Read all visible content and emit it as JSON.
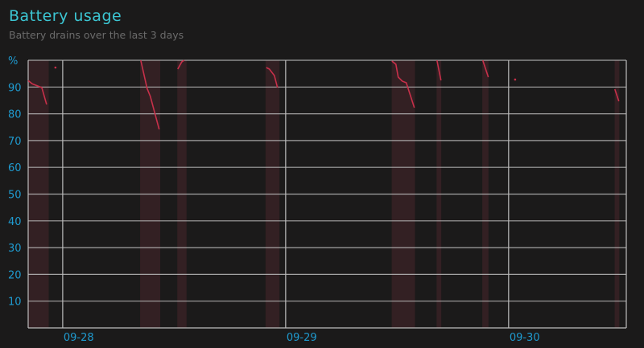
{
  "header": {
    "title": "Battery usage",
    "subtitle": "Battery drains over the last 3 days"
  },
  "chart_data": {
    "type": "line",
    "title": "Battery usage",
    "subtitle": "Battery drains over the last 3 days",
    "ylabel": "%",
    "ylim": [
      0,
      100
    ],
    "yticks": [
      "90",
      "80",
      "70",
      "60",
      "50",
      "40",
      "30",
      "20",
      "10"
    ],
    "xlim": [
      "09-27 20:17",
      "09-30 12:40"
    ],
    "xticks": [
      "09-28",
      "09-29",
      "09-30"
    ],
    "grid": true,
    "colors": {
      "line": "#c8304a",
      "shade": "#3a2226",
      "grid": "#bdbdbd",
      "axis_text": "#1f9bd0",
      "title": "#3cc6d3"
    },
    "drain_periods": [
      [
        "09-27 20:17",
        "09-27 22:30"
      ],
      [
        "09-28 08:20",
        "09-28 10:30"
      ],
      [
        "09-28 12:20",
        "09-28 13:20"
      ],
      [
        "09-28 21:50",
        "09-28 23:20"
      ],
      [
        "09-29 11:25",
        "09-29 13:55"
      ],
      [
        "09-29 16:15",
        "09-29 16:45"
      ],
      [
        "09-29 21:10",
        "09-29 21:50"
      ],
      [
        "09-30 11:25",
        "09-30 11:55"
      ]
    ],
    "series": [
      {
        "points": [
          [
            "09-27 20:17",
            92.4
          ],
          [
            "09-27 20:43",
            91.2
          ],
          [
            "09-27 21:45",
            89.8
          ],
          [
            "09-27 22:16",
            83.5
          ]
        ]
      },
      {
        "points": [
          [
            "09-27 23:13",
            97.3
          ]
        ]
      },
      {
        "points": [
          [
            "09-28 08:24",
            100
          ],
          [
            "09-28 09:05",
            89.5
          ],
          [
            "09-28 09:26",
            86.5
          ],
          [
            "09-28 10:23",
            74.2
          ]
        ]
      },
      {
        "points": [
          [
            "09-28 12:23",
            96.7
          ],
          [
            "09-28 12:49",
            99.4
          ],
          [
            "09-28 13:05",
            100
          ]
        ]
      },
      {
        "points": [
          [
            "09-28 21:55",
            97.3
          ],
          [
            "09-28 22:15",
            96.7
          ],
          [
            "09-28 22:47",
            94.3
          ],
          [
            "09-28 23:07",
            89.8
          ]
        ]
      },
      {
        "points": [
          [
            "09-29 11:26",
            99.7
          ],
          [
            "09-29 11:52",
            98.5
          ],
          [
            "09-29 12:07",
            93.7
          ],
          [
            "09-29 12:33",
            92.2
          ],
          [
            "09-29 12:59",
            91.6
          ],
          [
            "09-29 13:51",
            82.3
          ]
        ]
      },
      {
        "points": [
          [
            "09-29 16:17",
            100
          ],
          [
            "09-29 16:43",
            92.5
          ]
        ]
      },
      {
        "points": [
          [
            "09-29 21:13",
            100
          ],
          [
            "09-29 21:49",
            93.7
          ]
        ]
      },
      {
        "points": [
          [
            "09-30 00:42",
            92.8
          ]
        ]
      },
      {
        "points": [
          [
            "09-30 11:26",
            89.2
          ],
          [
            "09-30 11:52",
            84.7
          ]
        ]
      }
    ]
  }
}
